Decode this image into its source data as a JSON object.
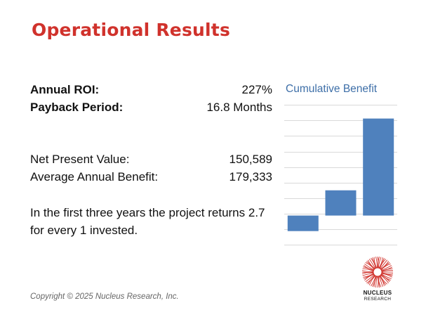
{
  "title": "Operational Results",
  "metrics": {
    "roi": {
      "label": "Annual ROI:",
      "value": "227%"
    },
    "payback": {
      "label": "Payback Period:",
      "value": "16.8 Months"
    },
    "npv": {
      "label": "Net Present Value:",
      "value": "150,589"
    },
    "avg_benefit": {
      "label": "Average Annual Benefit:",
      "value": "179,333"
    }
  },
  "summary": "In the first three years the project returns 2.7 for every 1 invested.",
  "copyright": "Copyright © 2025 Nucleus Research, Inc.",
  "logo": {
    "line1": "NUCLEUS",
    "line2": "RESEARCH",
    "color": "#d0322c"
  },
  "chart_data": {
    "type": "bar",
    "title": "Cumulative Benefit",
    "categories": [
      "",
      "",
      ""
    ],
    "values": [
      -0.8,
      1.3,
      5.0
    ],
    "ylim": [
      -1.5,
      6.0
    ],
    "grid": true,
    "bar_color": "#4f81bd"
  }
}
